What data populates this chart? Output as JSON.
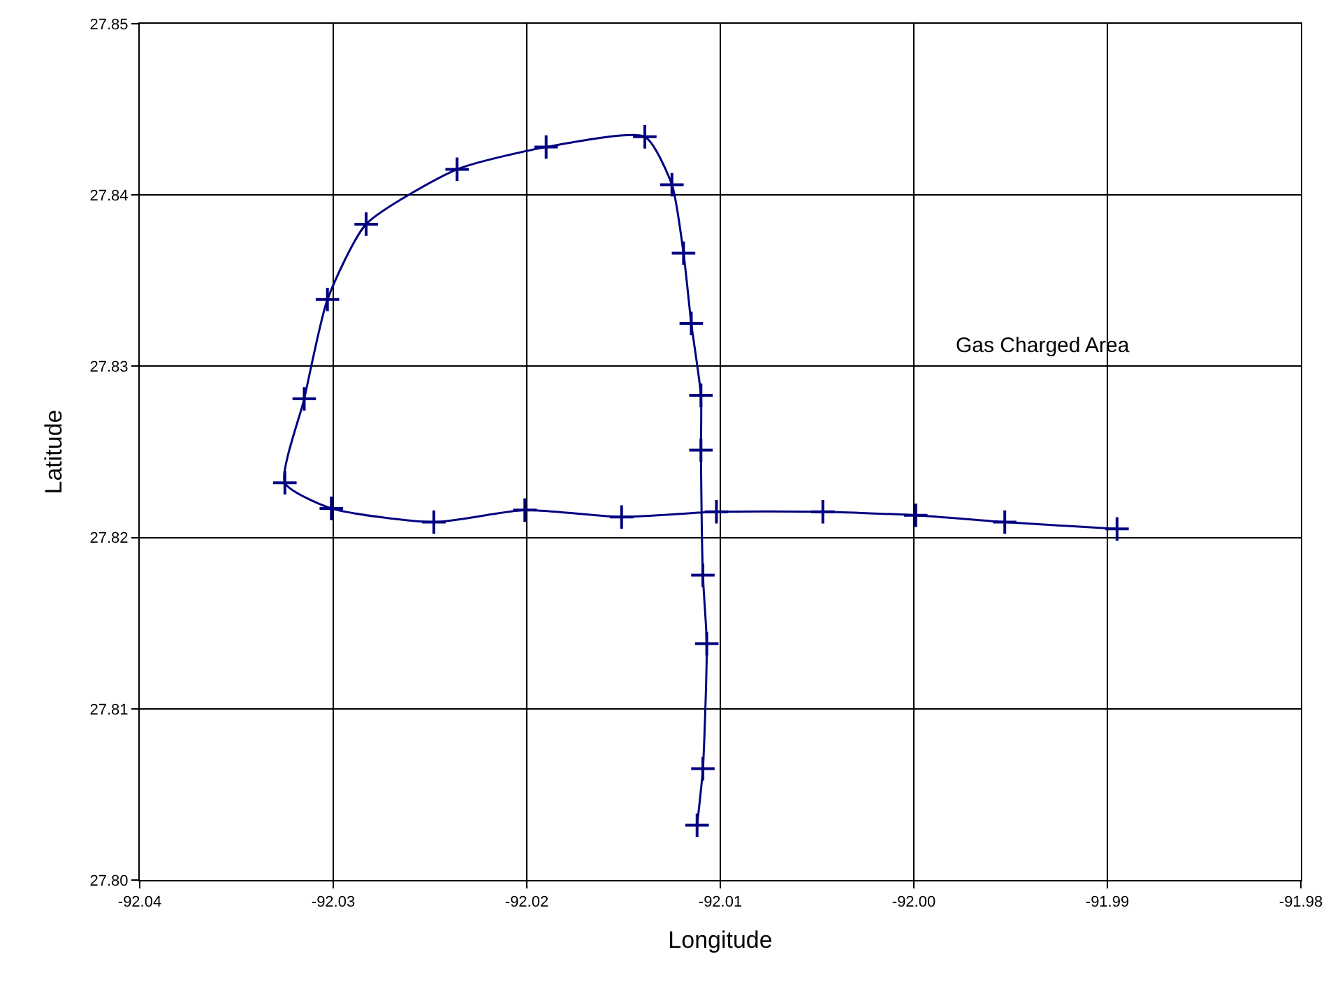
{
  "chart_data": {
    "type": "line",
    "xlabel": "Longitude",
    "ylabel": "Latitude",
    "x": [
      -92.0112,
      -92.0109,
      -92.0107,
      -92.0109,
      -92.011,
      -92.011,
      -92.0115,
      -92.0119,
      -92.0125,
      -92.0139,
      -92.019,
      -92.0236,
      -92.0283,
      -92.0303,
      -92.0315,
      -92.0325,
      -92.0301,
      -92.0248,
      -92.0201,
      -92.0151,
      -92.0102,
      -92.0047,
      -91.9999,
      -91.9953,
      -91.9895
    ],
    "series": [
      {
        "color": "#000080",
        "values": [
          27.8032,
          27.8065,
          27.8138,
          27.8178,
          27.8251,
          27.8283,
          27.8325,
          27.8366,
          27.8406,
          27.8434,
          27.8428,
          27.8415,
          27.8383,
          27.8339,
          27.8281,
          27.8232,
          27.8217,
          27.8209,
          27.8216,
          27.8212,
          27.8215,
          27.8215,
          27.8213,
          27.8209,
          27.8205
        ]
      }
    ],
    "xlim": [
      -92.04,
      -91.98
    ],
    "xticks": [
      {
        "value": -92.04,
        "label": "-92.04"
      },
      {
        "value": -92.03,
        "label": "-92.03"
      },
      {
        "value": -92.02,
        "label": "-92.02"
      },
      {
        "value": -92.01,
        "label": "-92.01"
      },
      {
        "value": -92.0,
        "label": "-92.00"
      },
      {
        "value": -91.99,
        "label": "-91.99"
      },
      {
        "value": -91.98,
        "label": "-91.98"
      }
    ],
    "ylim": [
      27.8,
      27.85
    ],
    "yticks": [
      {
        "value": 27.8,
        "label": "27.80"
      },
      27.81,
      27.82,
      27.83,
      27.84,
      {
        "value": 27.85,
        "label": "27.85"
      }
    ],
    "grid": true,
    "marker": "cross",
    "line_style": "solid",
    "annotations": [
      "Gas Charged Area"
    ]
  }
}
